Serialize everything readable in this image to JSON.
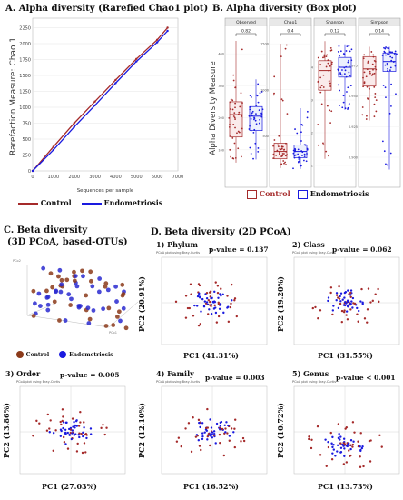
{
  "panelA": {
    "title": "A. Alpha diversity (Rarefied Chao1 plot)",
    "ylabel": "Rarefaction Measure: Chao 1",
    "xlabel": "Sequences per sample",
    "legend": [
      "Control",
      "Endometriosis"
    ]
  },
  "panelB": {
    "title": "B. Alpha diversity (Box plot)",
    "ylabel": "Alpha Diversity Measure",
    "legend": [
      "Control",
      "Endometriosis"
    ]
  },
  "panelC": {
    "title": "C. Beta diversity",
    "subtitle": "(3D PCoA, based-OTUs)",
    "legend": [
      "Control",
      "Endometriosis"
    ]
  },
  "panelD": {
    "title": "D. Beta diversity (2D PCoA)",
    "small_label": "PCoA plot using Bray-Curtis"
  },
  "colors": {
    "control": "#a52a2a",
    "endo": "#1a1adf"
  },
  "chart_data": [
    {
      "type": "line",
      "panel": "A",
      "x": [
        0,
        1000,
        2000,
        3000,
        4000,
        5000,
        6000,
        6500
      ],
      "xticks": [
        "0",
        "1000",
        "2000",
        "3000",
        "4000",
        "5000",
        "6000",
        "7000"
      ],
      "yticks": [
        "0",
        "250",
        "500",
        "750",
        "1000",
        "1250",
        "1500",
        "1750",
        "2000",
        "2250"
      ],
      "ylim": [
        0,
        2400
      ],
      "xlim": [
        0,
        7000
      ],
      "series": [
        {
          "name": "Control",
          "values": [
            0,
            380,
            750,
            1090,
            1430,
            1760,
            2060,
            2250
          ]
        },
        {
          "name": "Endometriosis",
          "values": [
            0,
            330,
            690,
            1030,
            1380,
            1720,
            2020,
            2200
          ]
        }
      ]
    },
    {
      "type": "box",
      "panel": "B",
      "subpanels": [
        {
          "name": "Observed",
          "p": "0.82",
          "yticks": [
            "100",
            "200",
            "300",
            "400"
          ],
          "ylim": [
            0,
            460
          ],
          "control": {
            "min": 60,
            "q1": 140,
            "median": 210,
            "q3": 250,
            "max": 440
          },
          "endo": {
            "min": 70,
            "q1": 160,
            "median": 205,
            "q3": 235,
            "max": 320
          }
        },
        {
          "name": "Chao1",
          "p": "0.4",
          "yticks": [
            "500",
            "1000",
            "1500"
          ],
          "ylim": [
            0,
            1600
          ],
          "control": {
            "min": 150,
            "q1": 250,
            "median": 330,
            "q3": 420,
            "max": 1500
          },
          "endo": {
            "min": 140,
            "q1": 260,
            "median": 330,
            "q3": 400,
            "max": 800
          }
        },
        {
          "name": "Shannon",
          "p": "0.12",
          "yticks": [
            "1",
            "2",
            "3",
            "4"
          ],
          "ylim": [
            0.5,
            5
          ],
          "control": {
            "min": 1.2,
            "q1": 3.3,
            "median": 3.9,
            "q3": 4.2,
            "max": 4.8
          },
          "endo": {
            "min": 2.7,
            "q1": 3.7,
            "median": 4.0,
            "q3": 4.3,
            "max": 4.7
          }
        },
        {
          "name": "Simpson",
          "p": "0.14",
          "yticks": [
            "0.900",
            "0.925",
            "0.950",
            "0.975"
          ],
          "ylim": [
            0.88,
            1.0
          ],
          "control": {
            "min": 0.93,
            "q1": 0.958,
            "median": 0.972,
            "q3": 0.982,
            "max": 0.99
          },
          "endo": {
            "min": 0.89,
            "q1": 0.97,
            "median": 0.978,
            "q3": 0.985,
            "max": 0.99
          }
        }
      ]
    },
    {
      "type": "scatter",
      "panel": "D",
      "plots": [
        {
          "title": "1) Phylum",
          "p_label": "p-value = 0.137",
          "xlabel": "PC1 (41.31%)",
          "ylabel": "PC2 (20.91%)"
        },
        {
          "title": "2) Class",
          "p_label": "p-value = 0.062",
          "xlabel": "PC1 (31.55%)",
          "ylabel": "PC2 (19.20%)"
        },
        {
          "title": "3) Order",
          "p_label": "p-value = 0.005",
          "xlabel": "PC1 (27.03%)",
          "ylabel": "PC2 (13.86%)"
        },
        {
          "title": "4) Family",
          "p_label": "p-value = 0.003",
          "xlabel": "PC1 (16.52%)",
          "ylabel": "PC2 (12.10%)"
        },
        {
          "title": "5) Genus",
          "p_label": "p-value < 0.001",
          "xlabel": "PC1 (13.73%)",
          "ylabel": "PC2 (10.72%)"
        }
      ]
    }
  ]
}
